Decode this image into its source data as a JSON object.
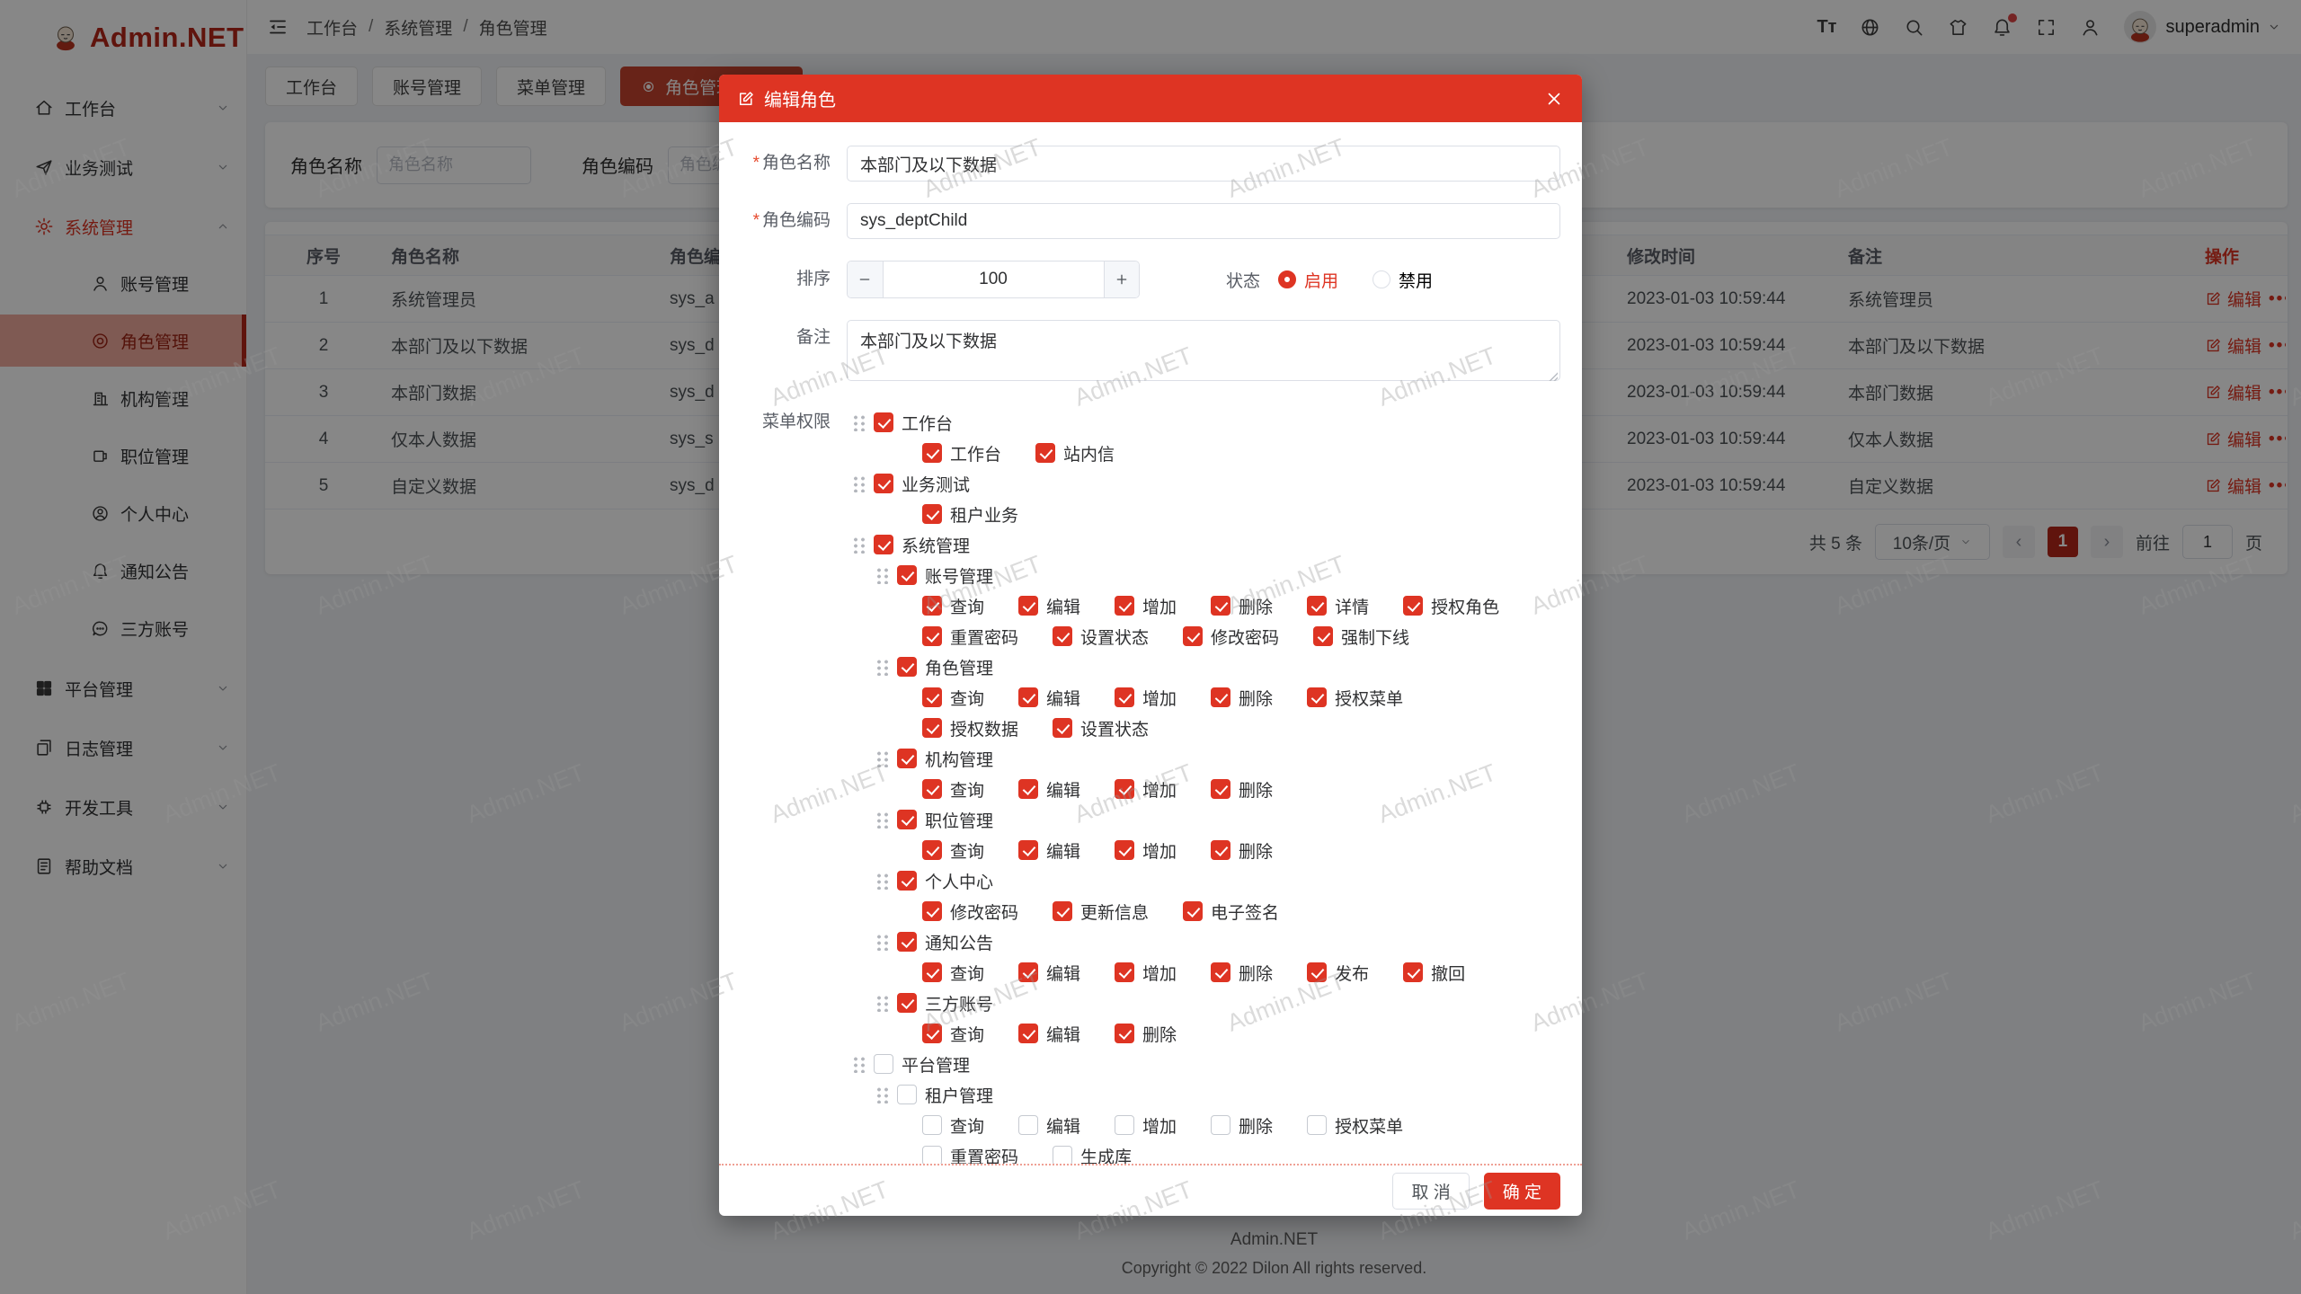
{
  "brand": {
    "name": "Admin.NET"
  },
  "watermark": "Admin.NET",
  "colors": {
    "accent": "#de3423",
    "active_tab": "#c5432e",
    "status_on": "#de3423"
  },
  "sidebar": {
    "items": [
      {
        "label": "工作台",
        "icon": "home-icon",
        "chevron": "down"
      },
      {
        "label": "业务测试",
        "icon": "send-icon",
        "chevron": "down"
      },
      {
        "label": "系统管理",
        "icon": "gear-icon",
        "chevron": "up",
        "active": true,
        "children": [
          {
            "label": "账号管理",
            "icon": "user-icon"
          },
          {
            "label": "角色管理",
            "icon": "role-icon",
            "active": true
          },
          {
            "label": "机构管理",
            "icon": "org-icon"
          },
          {
            "label": "职位管理",
            "icon": "position-icon"
          },
          {
            "label": "个人中心",
            "icon": "profile-icon"
          },
          {
            "label": "通知公告",
            "icon": "bell-icon"
          },
          {
            "label": "三方账号",
            "icon": "chat-icon"
          }
        ]
      },
      {
        "label": "平台管理",
        "icon": "grid-icon",
        "chevron": "down"
      },
      {
        "label": "日志管理",
        "icon": "log-icon",
        "chevron": "down"
      },
      {
        "label": "开发工具",
        "icon": "tools-icon",
        "chevron": "down"
      },
      {
        "label": "帮助文档",
        "icon": "doc-icon",
        "chevron": "down"
      }
    ]
  },
  "header": {
    "breadcrumb": [
      "工作台",
      "系统管理",
      "角色管理"
    ],
    "icons": [
      {
        "name": "font-size-icon",
        "glyph": "tsize"
      },
      {
        "name": "language-icon",
        "glyph": "globe"
      },
      {
        "name": "search-icon",
        "glyph": "search"
      },
      {
        "name": "theme-icon",
        "glyph": "shirt"
      },
      {
        "name": "notification-icon",
        "glyph": "bell",
        "badge": true
      },
      {
        "name": "fullscreen-icon",
        "glyph": "fullscreen"
      },
      {
        "name": "account-icon",
        "glyph": "person"
      }
    ],
    "user": "superadmin"
  },
  "tabs": [
    {
      "label": "工作台"
    },
    {
      "label": "账号管理"
    },
    {
      "label": "菜单管理"
    },
    {
      "label": "角色管理",
      "active": true
    }
  ],
  "search": {
    "name_label": "角色名称",
    "name_placeholder": "角色名称",
    "code_label": "角色编码",
    "code_placeholder": "角色编码"
  },
  "table": {
    "columns": [
      "序号",
      "角色名称",
      "角色编码",
      "修改时间",
      "备注",
      "操作"
    ],
    "edit_label": "编辑",
    "rows": [
      {
        "index": "1",
        "name": "系统管理员",
        "code": "sys_a",
        "time": "2023-01-03 10:59:44",
        "remark": "系统管理员"
      },
      {
        "index": "2",
        "name": "本部门及以下数据",
        "code": "sys_d",
        "time": "2023-01-03 10:59:44",
        "remark": "本部门及以下数据"
      },
      {
        "index": "3",
        "name": "本部门数据",
        "code": "sys_d",
        "time": "2023-01-03 10:59:44",
        "remark": "本部门数据"
      },
      {
        "index": "4",
        "name": "仅本人数据",
        "code": "sys_s",
        "time": "2023-01-03 10:59:44",
        "remark": "仅本人数据"
      },
      {
        "index": "5",
        "name": "自定义数据",
        "code": "sys_d",
        "time": "2023-01-03 10:59:44",
        "remark": "自定义数据"
      }
    ]
  },
  "pagination": {
    "total": "共 5 条",
    "page_size": "10条/页",
    "current": "1",
    "goto_label": "前往",
    "goto_value": "1",
    "page_label": "页"
  },
  "modal": {
    "title": "编辑角色",
    "required_mark": "*",
    "fields": {
      "name_label": "角色名称",
      "name_value": "本部门及以下数据",
      "code_label": "角色编码",
      "code_value": "sys_deptChild",
      "sort_label": "排序",
      "sort_value": "100",
      "status_label": "状态",
      "status_options": [
        {
          "label": "启用",
          "checked": true
        },
        {
          "label": "禁用",
          "checked": false
        }
      ],
      "remark_label": "备注",
      "remark_value": "本部门及以下数据",
      "perm_label": "菜单权限"
    },
    "tree": [
      {
        "kind": "group",
        "level": 1,
        "label": "工作台",
        "checked": true
      },
      {
        "kind": "leaves",
        "items": [
          {
            "label": "工作台",
            "checked": true
          },
          {
            "label": "站内信",
            "checked": true
          }
        ]
      },
      {
        "kind": "group",
        "level": 1,
        "label": "业务测试",
        "checked": true
      },
      {
        "kind": "leaves",
        "items": [
          {
            "label": "租户业务",
            "checked": true
          }
        ]
      },
      {
        "kind": "group",
        "level": 1,
        "label": "系统管理",
        "checked": true
      },
      {
        "kind": "group",
        "level": 2,
        "label": "账号管理",
        "checked": true
      },
      {
        "kind": "leaves",
        "items": [
          {
            "label": "查询",
            "checked": true
          },
          {
            "label": "编辑",
            "checked": true
          },
          {
            "label": "增加",
            "checked": true
          },
          {
            "label": "删除",
            "checked": true
          },
          {
            "label": "详情",
            "checked": true
          },
          {
            "label": "授权角色",
            "checked": true
          },
          {
            "label": "重置密码",
            "checked": true
          },
          {
            "label": "设置状态",
            "checked": true
          },
          {
            "label": "修改密码",
            "checked": true
          },
          {
            "label": "强制下线",
            "checked": true
          }
        ]
      },
      {
        "kind": "group",
        "level": 2,
        "label": "角色管理",
        "checked": true
      },
      {
        "kind": "leaves",
        "items": [
          {
            "label": "查询",
            "checked": true
          },
          {
            "label": "编辑",
            "checked": true
          },
          {
            "label": "增加",
            "checked": true
          },
          {
            "label": "删除",
            "checked": true
          },
          {
            "label": "授权菜单",
            "checked": true
          },
          {
            "label": "授权数据",
            "checked": true
          },
          {
            "label": "设置状态",
            "checked": true
          }
        ]
      },
      {
        "kind": "group",
        "level": 2,
        "label": "机构管理",
        "checked": true
      },
      {
        "kind": "leaves",
        "items": [
          {
            "label": "查询",
            "checked": true
          },
          {
            "label": "编辑",
            "checked": true
          },
          {
            "label": "增加",
            "checked": true
          },
          {
            "label": "删除",
            "checked": true
          }
        ]
      },
      {
        "kind": "group",
        "level": 2,
        "label": "职位管理",
        "checked": true
      },
      {
        "kind": "leaves",
        "items": [
          {
            "label": "查询",
            "checked": true
          },
          {
            "label": "编辑",
            "checked": true
          },
          {
            "label": "增加",
            "checked": true
          },
          {
            "label": "删除",
            "checked": true
          }
        ]
      },
      {
        "kind": "group",
        "level": 2,
        "label": "个人中心",
        "checked": true
      },
      {
        "kind": "leaves",
        "items": [
          {
            "label": "修改密码",
            "checked": true
          },
          {
            "label": "更新信息",
            "checked": true
          },
          {
            "label": "电子签名",
            "checked": true
          }
        ]
      },
      {
        "kind": "group",
        "level": 2,
        "label": "通知公告",
        "checked": true
      },
      {
        "kind": "leaves",
        "items": [
          {
            "label": "查询",
            "checked": true
          },
          {
            "label": "编辑",
            "checked": true
          },
          {
            "label": "增加",
            "checked": true
          },
          {
            "label": "删除",
            "checked": true
          },
          {
            "label": "发布",
            "checked": true
          },
          {
            "label": "撤回",
            "checked": true
          }
        ]
      },
      {
        "kind": "group",
        "level": 2,
        "label": "三方账号",
        "checked": true
      },
      {
        "kind": "leaves",
        "items": [
          {
            "label": "查询",
            "checked": true
          },
          {
            "label": "编辑",
            "checked": true
          },
          {
            "label": "删除",
            "checked": true
          }
        ]
      },
      {
        "kind": "group",
        "level": 1,
        "label": "平台管理",
        "checked": false
      },
      {
        "kind": "group",
        "level": 2,
        "label": "租户管理",
        "checked": false
      },
      {
        "kind": "leaves",
        "items": [
          {
            "label": "查询",
            "checked": false
          },
          {
            "label": "编辑",
            "checked": false
          },
          {
            "label": "增加",
            "checked": false
          },
          {
            "label": "删除",
            "checked": false
          },
          {
            "label": "授权菜单",
            "checked": false
          },
          {
            "label": "重置密码",
            "checked": false
          },
          {
            "label": "生成库",
            "checked": false
          }
        ]
      }
    ],
    "cancel": "取 消",
    "confirm": "确 定"
  },
  "footer": {
    "line1": "Admin.NET",
    "line2": "Copyright © 2022 Dilon All rights reserved."
  }
}
